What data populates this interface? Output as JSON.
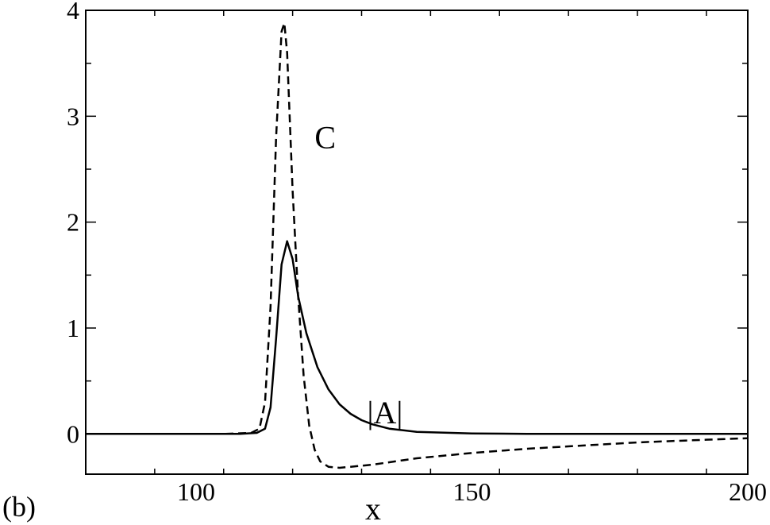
{
  "panel_label": "(b)",
  "chart_data": {
    "type": "line",
    "xlabel": "x",
    "ylabel": "",
    "xlim": [
      80,
      200
    ],
    "ylim": [
      -0.38,
      4.0
    ],
    "xticks": [
      100,
      150,
      200
    ],
    "xtick_labels": [
      "100",
      "150",
      "200"
    ],
    "yticks": [
      0,
      1,
      2,
      3,
      4
    ],
    "ytick_labels": [
      "0",
      "1",
      "2",
      "3",
      "4"
    ],
    "grid": false,
    "legend": "none",
    "annotations": [
      {
        "text": "C",
        "series": "C",
        "x": 121.5,
        "y": 2.7
      },
      {
        "text": "|A|",
        "series": "|A|",
        "x": 131,
        "y": 0.1
      }
    ],
    "series": [
      {
        "name": "C",
        "style": "dashed",
        "color": "#000000",
        "x": [
          80,
          105,
          110,
          111.5,
          112.5,
          113.5,
          114.5,
          115.5,
          116.0,
          116.5,
          117.5,
          118.5,
          119.5,
          120.5,
          121.5,
          122.5,
          124,
          126,
          128,
          132,
          140,
          150,
          160,
          170,
          180,
          190,
          200
        ],
        "y": [
          0,
          0,
          0.01,
          0.05,
          0.3,
          1.2,
          2.8,
          3.8,
          3.88,
          3.6,
          2.3,
          1.3,
          0.55,
          0.08,
          -0.15,
          -0.26,
          -0.31,
          -0.32,
          -0.31,
          -0.29,
          -0.23,
          -0.18,
          -0.14,
          -0.11,
          -0.08,
          -0.06,
          -0.04
        ]
      },
      {
        "name": "|A|",
        "style": "solid",
        "color": "#000000",
        "x": [
          80,
          108,
          111,
          112.5,
          113.5,
          114.5,
          115.5,
          116.5,
          117.5,
          118.5,
          120,
          122,
          124,
          126,
          128,
          130,
          132,
          135,
          140,
          150,
          160,
          200
        ],
        "y": [
          0,
          0,
          0.01,
          0.05,
          0.25,
          0.9,
          1.6,
          1.82,
          1.65,
          1.3,
          0.95,
          0.63,
          0.42,
          0.28,
          0.19,
          0.13,
          0.09,
          0.05,
          0.02,
          0.005,
          0,
          0
        ]
      }
    ]
  }
}
